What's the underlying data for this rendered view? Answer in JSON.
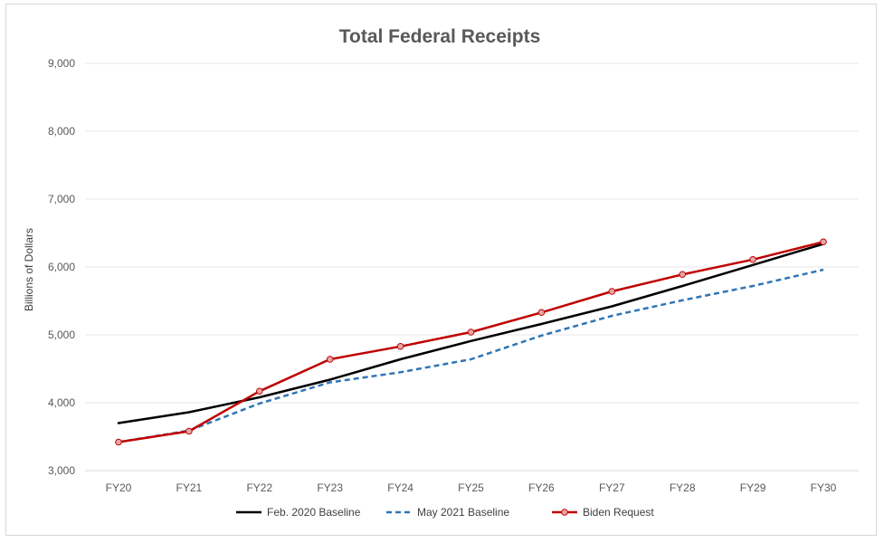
{
  "chart_data": {
    "type": "line",
    "title": "Total Federal Receipts",
    "xlabel": "",
    "ylabel": "Billions of Dollars",
    "categories": [
      "FY20",
      "FY21",
      "FY22",
      "FY23",
      "FY24",
      "FY25",
      "FY26",
      "FY27",
      "FY28",
      "FY29",
      "FY30"
    ],
    "ylim": [
      3000,
      9000
    ],
    "yticks": [
      3000,
      4000,
      5000,
      6000,
      7000,
      8000,
      9000
    ],
    "ytick_labels": [
      "3,000",
      "4,000",
      "5,000",
      "6,000",
      "7,000",
      "8,000",
      "9,000"
    ],
    "grid": true,
    "legend_position": "bottom",
    "series": [
      {
        "name": "Feb. 2020 Baseline",
        "color": "#000000",
        "style": "solid",
        "markers": false,
        "values": [
          3700,
          3860,
          4080,
          4340,
          4640,
          4910,
          5160,
          5420,
          5720,
          6030,
          6340
        ]
      },
      {
        "name": "May 2021 Baseline",
        "color": "#2e75b6",
        "style": "dashed",
        "markers": false,
        "values": [
          3420,
          3590,
          3990,
          4300,
          4450,
          4640,
          4990,
          5280,
          5510,
          5720,
          5960
        ]
      },
      {
        "name": "Biden Request",
        "color": "#c00000",
        "style": "solid",
        "markers": true,
        "marker_fill": "#e6a7a7",
        "values": [
          3420,
          3580,
          4170,
          4640,
          4830,
          5040,
          5330,
          5640,
          5890,
          6110,
          6370
        ]
      }
    ]
  }
}
